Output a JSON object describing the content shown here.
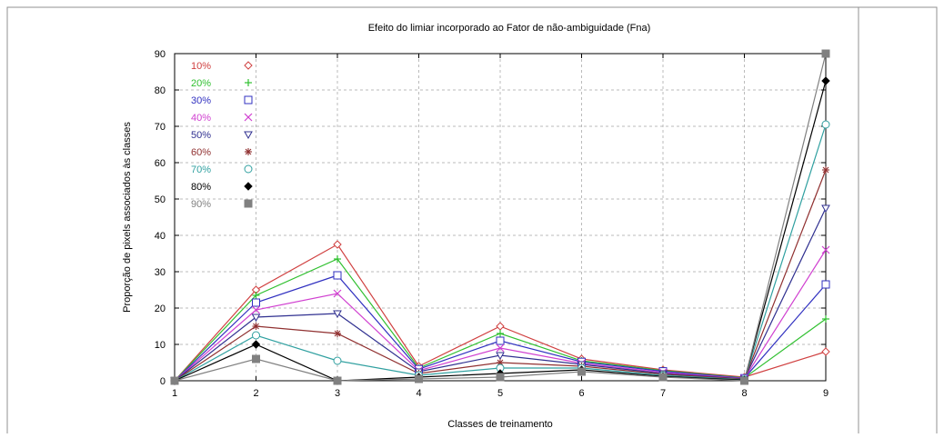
{
  "chart_data": {
    "type": "line",
    "title": "Efeito do limiar incorporado ao Fator de não-ambiguidade (Fna)",
    "xlabel": "Classes de treinamento",
    "ylabel": "Proporção de pixels associados às classes",
    "x": [
      1,
      2,
      3,
      4,
      5,
      6,
      7,
      8,
      9
    ],
    "xlim": [
      1,
      9
    ],
    "ylim": [
      0,
      90
    ],
    "xticks": [
      "1",
      "2",
      "3",
      "4",
      "5",
      "6",
      "7",
      "8",
      "9"
    ],
    "yticks": [
      "0",
      "10",
      "20",
      "30",
      "40",
      "50",
      "60",
      "70",
      "80",
      "90"
    ],
    "grid": true,
    "legend_position": "top-left",
    "series": [
      {
        "name": "10%",
        "color": "#d04040",
        "marker": "diamond-open",
        "values": [
          0,
          25,
          37.5,
          4,
          15,
          6,
          3,
          1,
          8
        ]
      },
      {
        "name": "20%",
        "color": "#30c030",
        "marker": "plus",
        "values": [
          0,
          23.5,
          33.5,
          3.5,
          13,
          5.5,
          2.8,
          0.8,
          17
        ]
      },
      {
        "name": "30%",
        "color": "#3030c0",
        "marker": "square-open",
        "values": [
          0,
          21.5,
          29,
          3.2,
          11,
          5.2,
          2.6,
          0.7,
          26.5
        ]
      },
      {
        "name": "40%",
        "color": "#d040d0",
        "marker": "cross",
        "values": [
          0,
          19.5,
          24,
          2.8,
          9,
          4.8,
          2.3,
          0.6,
          36
        ]
      },
      {
        "name": "50%",
        "color": "#303090",
        "marker": "triangle-down",
        "values": [
          0,
          17.5,
          18.5,
          2.5,
          7,
          4.5,
          2,
          0.5,
          47.5
        ]
      },
      {
        "name": "60%",
        "color": "#903030",
        "marker": "asterisk",
        "values": [
          0,
          15,
          13,
          2,
          5,
          4,
          1.8,
          0.4,
          58
        ]
      },
      {
        "name": "70%",
        "color": "#30a0a0",
        "marker": "circle-open",
        "values": [
          0,
          12.5,
          5.5,
          1.5,
          3.5,
          3.5,
          1.5,
          0.3,
          70.5
        ]
      },
      {
        "name": "80%",
        "color": "#000000",
        "marker": "diamond-filled",
        "values": [
          0,
          10,
          0,
          1,
          2,
          3,
          1.2,
          0.2,
          82.5
        ]
      },
      {
        "name": "90%",
        "color": "#808080",
        "marker": "square-filled",
        "values": [
          0,
          6,
          0,
          0.5,
          1,
          2.5,
          1,
          0,
          90
        ]
      }
    ]
  }
}
